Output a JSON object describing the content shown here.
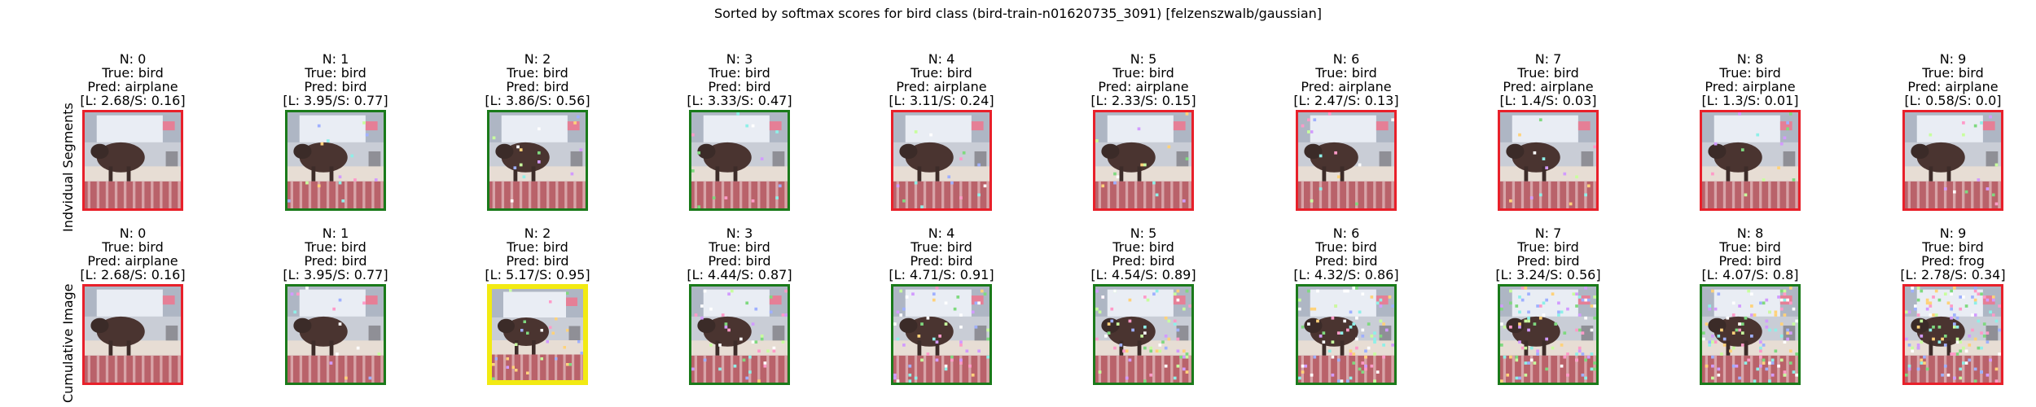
{
  "figure": {
    "title": "Sorted by softmax scores for bird class (bird-train-n01620735_3091) [felzenszwalb/gaussian]"
  },
  "colors": {
    "correct": "#1a7a1a",
    "incorrect": "#e8202a",
    "best": "#f2ea12"
  },
  "rows": [
    {
      "label": "Indvidual Segments",
      "cells": [
        {
          "n": "N: 0",
          "true_label": "True: bird",
          "pred": "Pred: airplane",
          "score": "[L: 2.68/S: 0.16]",
          "border": "incorrect",
          "noise": 0
        },
        {
          "n": "N: 1",
          "true_label": "True: bird",
          "pred": "Pred: bird",
          "score": "[L: 3.95/S: 0.77]",
          "border": "correct",
          "noise": 1
        },
        {
          "n": "N: 2",
          "true_label": "True: bird",
          "pred": "Pred: bird",
          "score": "[L: 3.86/S: 0.56]",
          "border": "correct",
          "noise": 1
        },
        {
          "n": "N: 3",
          "true_label": "True: bird",
          "pred": "Pred: bird",
          "score": "[L: 3.33/S: 0.47]",
          "border": "correct",
          "noise": 1
        },
        {
          "n": "N: 4",
          "true_label": "True: bird",
          "pred": "Pred: airplane",
          "score": "[L: 3.11/S: 0.24]",
          "border": "incorrect",
          "noise": 1
        },
        {
          "n": "N: 5",
          "true_label": "True: bird",
          "pred": "Pred: airplane",
          "score": "[L: 2.33/S: 0.15]",
          "border": "incorrect",
          "noise": 1
        },
        {
          "n": "N: 6",
          "true_label": "True: bird",
          "pred": "Pred: airplane",
          "score": "[L: 2.47/S: 0.13]",
          "border": "incorrect",
          "noise": 1
        },
        {
          "n": "N: 7",
          "true_label": "True: bird",
          "pred": "Pred: airplane",
          "score": "[L: 1.4/S: 0.03]",
          "border": "incorrect",
          "noise": 1
        },
        {
          "n": "N: 8",
          "true_label": "True: bird",
          "pred": "Pred: airplane",
          "score": "[L: 1.3/S: 0.01]",
          "border": "incorrect",
          "noise": 1
        },
        {
          "n": "N: 9",
          "true_label": "True: bird",
          "pred": "Pred: airplane",
          "score": "[L: 0.58/S: 0.0]",
          "border": "incorrect",
          "noise": 1
        }
      ]
    },
    {
      "label": "Cumulative Image",
      "cells": [
        {
          "n": "N: 0",
          "true_label": "True: bird",
          "pred": "Pred: airplane",
          "score": "[L: 2.68/S: 0.16]",
          "border": "incorrect",
          "noise": 0
        },
        {
          "n": "N: 1",
          "true_label": "True: bird",
          "pred": "Pred: bird",
          "score": "[L: 3.95/S: 0.77]",
          "border": "correct",
          "noise": 1
        },
        {
          "n": "N: 2",
          "true_label": "True: bird",
          "pred": "Pred: bird",
          "score": "[L: 5.17/S: 0.95]",
          "border": "best",
          "noise": 2
        },
        {
          "n": "N: 3",
          "true_label": "True: bird",
          "pred": "Pred: bird",
          "score": "[L: 4.44/S: 0.87]",
          "border": "correct",
          "noise": 3
        },
        {
          "n": "N: 4",
          "true_label": "True: bird",
          "pred": "Pred: bird",
          "score": "[L: 4.71/S: 0.91]",
          "border": "correct",
          "noise": 4
        },
        {
          "n": "N: 5",
          "true_label": "True: bird",
          "pred": "Pred: bird",
          "score": "[L: 4.54/S: 0.89]",
          "border": "correct",
          "noise": 5
        },
        {
          "n": "N: 6",
          "true_label": "True: bird",
          "pred": "Pred: bird",
          "score": "[L: 4.32/S: 0.86]",
          "border": "correct",
          "noise": 6
        },
        {
          "n": "N: 7",
          "true_label": "True: bird",
          "pred": "Pred: bird",
          "score": "[L: 3.24/S: 0.56]",
          "border": "correct",
          "noise": 7
        },
        {
          "n": "N: 8",
          "true_label": "True: bird",
          "pred": "Pred: bird",
          "score": "[L: 4.07/S: 0.8]",
          "border": "correct",
          "noise": 8
        },
        {
          "n": "N: 9",
          "true_label": "True: bird",
          "pred": "Pred: frog",
          "score": "[L: 2.78/S: 0.34]",
          "border": "incorrect",
          "noise": 9
        }
      ]
    }
  ]
}
